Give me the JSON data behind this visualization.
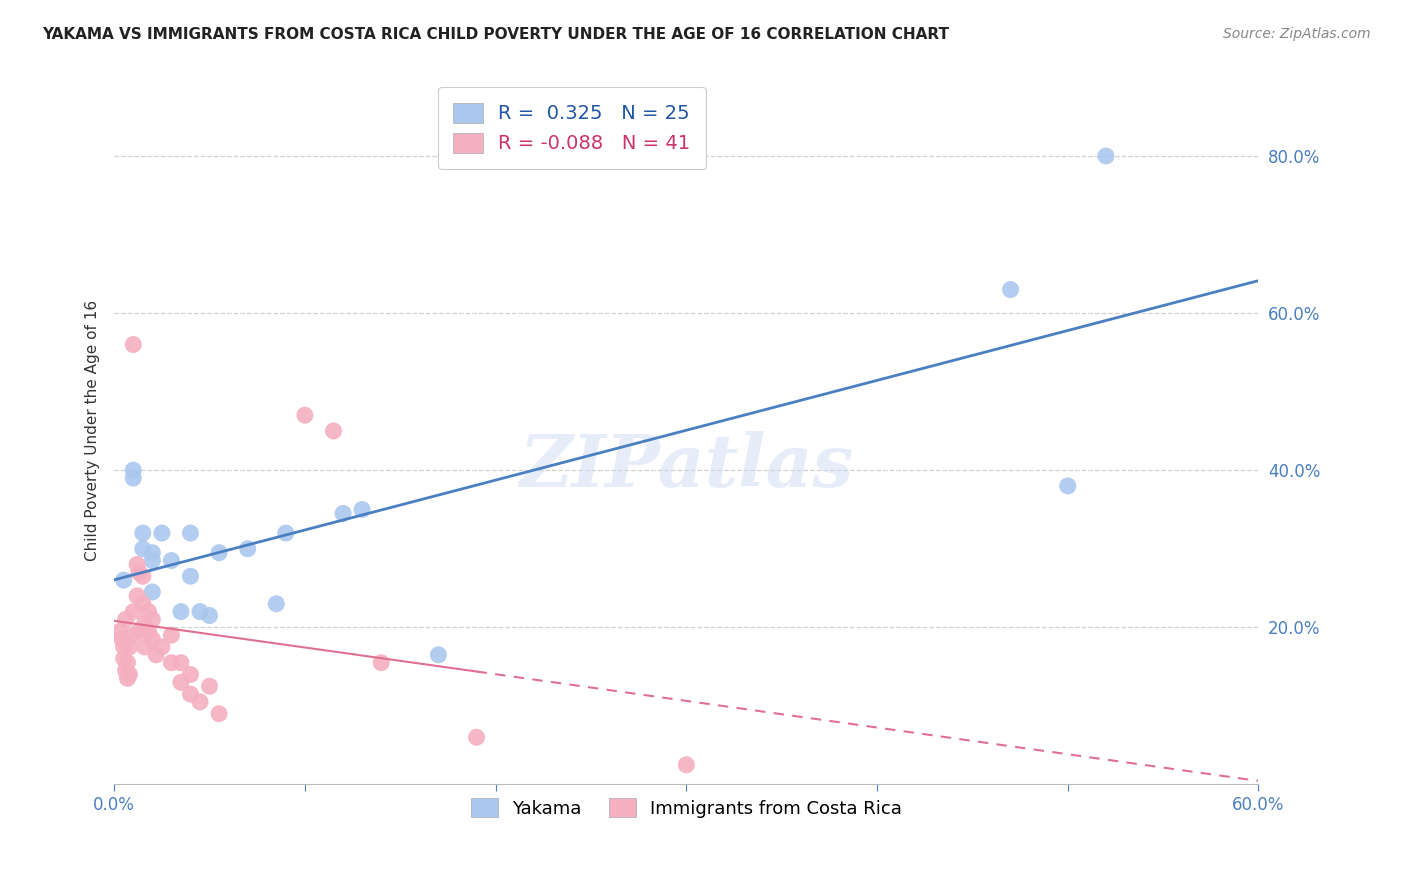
{
  "title": "YAKAMA VS IMMIGRANTS FROM COSTA RICA CHILD POVERTY UNDER THE AGE OF 16 CORRELATION CHART",
  "source": "Source: ZipAtlas.com",
  "ylabel": "Child Poverty Under the Age of 16",
  "xlim": [
    0.0,
    0.6
  ],
  "ylim": [
    0.0,
    0.9
  ],
  "yticks": [
    0.2,
    0.4,
    0.6,
    0.8
  ],
  "xticks_major": [
    0.0,
    0.1,
    0.2,
    0.3,
    0.4,
    0.5,
    0.6
  ],
  "xticks_labeled": [
    0.0,
    0.6
  ],
  "yakama_color": "#aac8ee",
  "cr_color": "#f4afc0",
  "line_blue": "#4a7fc1",
  "line_pink": "#e07090",
  "R_yakama": 0.325,
  "N_yakama": 25,
  "R_cr": -0.088,
  "N_cr": 41,
  "legend_labels": [
    "Yakama",
    "Immigrants from Costa Rica"
  ],
  "watermark": "ZIPatlas",
  "yakama_x": [
    0.005,
    0.01,
    0.01,
    0.015,
    0.015,
    0.02,
    0.02,
    0.02,
    0.025,
    0.03,
    0.035,
    0.04,
    0.04,
    0.045,
    0.05,
    0.055,
    0.07,
    0.085,
    0.09,
    0.13,
    0.17,
    0.47,
    0.5,
    0.52,
    0.12
  ],
  "yakama_y": [
    0.26,
    0.4,
    0.39,
    0.32,
    0.3,
    0.295,
    0.285,
    0.245,
    0.32,
    0.285,
    0.22,
    0.32,
    0.265,
    0.22,
    0.215,
    0.295,
    0.3,
    0.23,
    0.32,
    0.35,
    0.165,
    0.63,
    0.38,
    0.8,
    0.345
  ],
  "cr_x": [
    0.003,
    0.004,
    0.005,
    0.005,
    0.006,
    0.006,
    0.007,
    0.007,
    0.008,
    0.008,
    0.01,
    0.01,
    0.01,
    0.012,
    0.012,
    0.013,
    0.013,
    0.015,
    0.015,
    0.016,
    0.016,
    0.018,
    0.018,
    0.02,
    0.02,
    0.022,
    0.025,
    0.03,
    0.03,
    0.035,
    0.035,
    0.04,
    0.04,
    0.045,
    0.05,
    0.055,
    0.1,
    0.115,
    0.14,
    0.19,
    0.3
  ],
  "cr_y": [
    0.195,
    0.185,
    0.175,
    0.16,
    0.145,
    0.21,
    0.155,
    0.135,
    0.14,
    0.175,
    0.56,
    0.22,
    0.19,
    0.28,
    0.24,
    0.195,
    0.27,
    0.265,
    0.23,
    0.205,
    0.175,
    0.22,
    0.195,
    0.21,
    0.185,
    0.165,
    0.175,
    0.19,
    0.155,
    0.155,
    0.13,
    0.14,
    0.115,
    0.105,
    0.125,
    0.09,
    0.47,
    0.45,
    0.155,
    0.06,
    0.025
  ]
}
